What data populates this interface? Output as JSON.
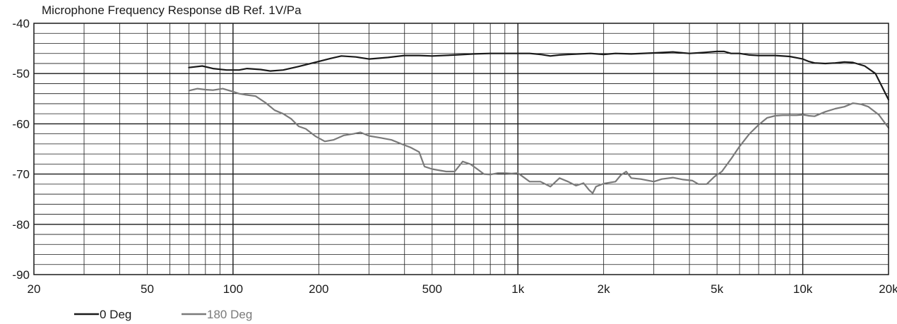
{
  "chart_data": {
    "type": "line",
    "title": "Microphone Frequency Response dB Ref. 1V/Pa",
    "xscale": "log",
    "xlim": [
      20,
      20000
    ],
    "ylim": [
      -90,
      -40
    ],
    "grid": true,
    "legend_position": "bottom-left",
    "x_ticks": [
      20,
      50,
      100,
      200,
      500,
      1000,
      2000,
      5000,
      10000,
      20000
    ],
    "x_tick_labels": [
      "20",
      "50",
      "100",
      "200",
      "500",
      "1k",
      "2k",
      "5k",
      "10k",
      "20k"
    ],
    "y_ticks": [
      -40,
      -50,
      -60,
      -70,
      -80,
      -90
    ],
    "y_tick_labels": [
      "-40",
      "-50",
      "-60",
      "-70",
      "-80",
      "-90"
    ],
    "series": [
      {
        "name": "0 Deg",
        "color": "#1a1a1a",
        "points": [
          [
            70,
            -48.8
          ],
          [
            78,
            -48.5
          ],
          [
            85,
            -49.0
          ],
          [
            95,
            -49.3
          ],
          [
            105,
            -49.3
          ],
          [
            112,
            -49.0
          ],
          [
            125,
            -49.2
          ],
          [
            135,
            -49.5
          ],
          [
            150,
            -49.3
          ],
          [
            170,
            -48.6
          ],
          [
            200,
            -47.6
          ],
          [
            220,
            -47.0
          ],
          [
            240,
            -46.5
          ],
          [
            270,
            -46.7
          ],
          [
            300,
            -47.1
          ],
          [
            350,
            -46.8
          ],
          [
            400,
            -46.4
          ],
          [
            450,
            -46.4
          ],
          [
            500,
            -46.5
          ],
          [
            600,
            -46.3
          ],
          [
            700,
            -46.1
          ],
          [
            800,
            -46.0
          ],
          [
            900,
            -46.0
          ],
          [
            1000,
            -46.0
          ],
          [
            1100,
            -46.0
          ],
          [
            1200,
            -46.2
          ],
          [
            1300,
            -46.5
          ],
          [
            1400,
            -46.3
          ],
          [
            1500,
            -46.2
          ],
          [
            1800,
            -46.0
          ],
          [
            2000,
            -46.2
          ],
          [
            2200,
            -46.0
          ],
          [
            2500,
            -46.1
          ],
          [
            3000,
            -45.9
          ],
          [
            3500,
            -45.7
          ],
          [
            4000,
            -46.0
          ],
          [
            4500,
            -45.8
          ],
          [
            5000,
            -45.6
          ],
          [
            5300,
            -45.6
          ],
          [
            5600,
            -46.0
          ],
          [
            6000,
            -46.0
          ],
          [
            6500,
            -46.3
          ],
          [
            7000,
            -46.4
          ],
          [
            8000,
            -46.4
          ],
          [
            9000,
            -46.6
          ],
          [
            10000,
            -47.1
          ],
          [
            10500,
            -47.6
          ],
          [
            11000,
            -47.9
          ],
          [
            12000,
            -48.0
          ],
          [
            13000,
            -47.9
          ],
          [
            14000,
            -47.7
          ],
          [
            15000,
            -47.8
          ],
          [
            16500,
            -48.5
          ],
          [
            18000,
            -50.0
          ],
          [
            20000,
            -55.2
          ]
        ]
      },
      {
        "name": "180 Deg",
        "color": "#7a7a7a",
        "points": [
          [
            70,
            -53.4
          ],
          [
            75,
            -53.0
          ],
          [
            80,
            -53.2
          ],
          [
            85,
            -53.3
          ],
          [
            92,
            -53.0
          ],
          [
            100,
            -53.6
          ],
          [
            105,
            -54.0
          ],
          [
            110,
            -54.2
          ],
          [
            120,
            -54.5
          ],
          [
            130,
            -55.8
          ],
          [
            140,
            -57.3
          ],
          [
            150,
            -58.0
          ],
          [
            160,
            -59.0
          ],
          [
            170,
            -60.5
          ],
          [
            180,
            -61.0
          ],
          [
            195,
            -62.5
          ],
          [
            210,
            -63.5
          ],
          [
            225,
            -63.2
          ],
          [
            245,
            -62.3
          ],
          [
            265,
            -62.0
          ],
          [
            280,
            -61.7
          ],
          [
            300,
            -62.4
          ],
          [
            330,
            -62.8
          ],
          [
            360,
            -63.2
          ],
          [
            390,
            -64.0
          ],
          [
            420,
            -64.7
          ],
          [
            450,
            -65.6
          ],
          [
            470,
            -68.5
          ],
          [
            500,
            -69.0
          ],
          [
            560,
            -69.5
          ],
          [
            600,
            -69.5
          ],
          [
            640,
            -67.5
          ],
          [
            680,
            -68.0
          ],
          [
            720,
            -69.0
          ],
          [
            760,
            -70.0
          ],
          [
            800,
            -70.1
          ],
          [
            850,
            -69.8
          ],
          [
            900,
            -69.8
          ],
          [
            950,
            -69.9
          ],
          [
            1000,
            -69.8
          ],
          [
            1100,
            -71.5
          ],
          [
            1200,
            -71.5
          ],
          [
            1300,
            -72.5
          ],
          [
            1400,
            -70.8
          ],
          [
            1500,
            -71.5
          ],
          [
            1600,
            -72.3
          ],
          [
            1700,
            -71.8
          ],
          [
            1780,
            -73.2
          ],
          [
            1830,
            -73.8
          ],
          [
            1880,
            -72.5
          ],
          [
            2000,
            -71.9
          ],
          [
            2200,
            -71.5
          ],
          [
            2300,
            -70.2
          ],
          [
            2400,
            -69.5
          ],
          [
            2500,
            -70.8
          ],
          [
            2700,
            -71.0
          ],
          [
            3000,
            -71.5
          ],
          [
            3200,
            -71.0
          ],
          [
            3500,
            -70.7
          ],
          [
            3800,
            -71.1
          ],
          [
            4100,
            -71.3
          ],
          [
            4300,
            -72.0
          ],
          [
            4600,
            -72.0
          ],
          [
            4900,
            -70.5
          ],
          [
            5200,
            -69.5
          ],
          [
            5600,
            -67.0
          ],
          [
            6000,
            -64.5
          ],
          [
            6500,
            -62.0
          ],
          [
            7000,
            -60.2
          ],
          [
            7500,
            -58.8
          ],
          [
            8000,
            -58.4
          ],
          [
            8500,
            -58.3
          ],
          [
            9000,
            -58.3
          ],
          [
            9500,
            -58.3
          ],
          [
            10000,
            -58.2
          ],
          [
            10500,
            -58.4
          ],
          [
            11000,
            -58.5
          ],
          [
            12000,
            -57.6
          ],
          [
            13000,
            -57.0
          ],
          [
            14000,
            -56.6
          ],
          [
            15000,
            -55.9
          ],
          [
            16000,
            -56.1
          ],
          [
            17000,
            -56.6
          ],
          [
            18500,
            -58.2
          ],
          [
            20000,
            -60.8
          ]
        ]
      }
    ]
  }
}
